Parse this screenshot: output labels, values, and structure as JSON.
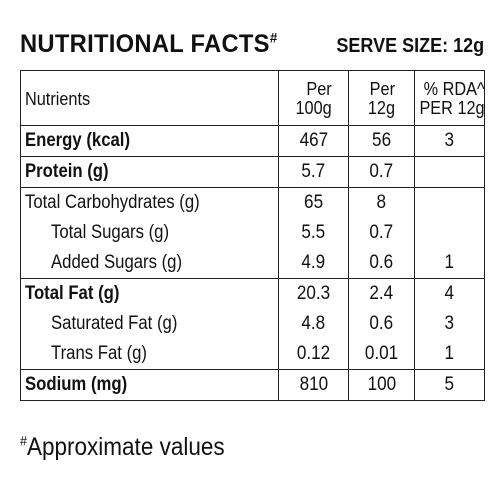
{
  "header": {
    "title": "NUTRITIONAL FACTS",
    "title_marker": "#",
    "serve_size": "SERVE SIZE: 12g"
  },
  "table": {
    "columns": {
      "nutrients": "Nutrients",
      "per100_line1": "Per",
      "per100_line2": "100g",
      "per12_line1": "Per",
      "per12_line2": "12g",
      "rda_line1": "% RDA^",
      "rda_line2": "PER 12g"
    },
    "rows": [
      {
        "name": "Energy (kcal)",
        "per100": "467",
        "per12": "56",
        "rda": "3"
      },
      {
        "name": "Protein (g)",
        "per100": "5.7",
        "per12": "0.7",
        "rda": ""
      },
      {
        "name": "Total Carbohydrates (g)",
        "per100": "65",
        "per12": "8",
        "rda": ""
      },
      {
        "name": "Total Sugars (g)",
        "per100": "5.5",
        "per12": "0.7",
        "rda": ""
      },
      {
        "name": "Added Sugars (g)",
        "per100": "4.9",
        "per12": "0.6",
        "rda": "1"
      },
      {
        "name": "Total Fat (g)",
        "per100": "20.3",
        "per12": "2.4",
        "rda": "4"
      },
      {
        "name": "Saturated Fat (g)",
        "per100": "4.8",
        "per12": "0.6",
        "rda": "3"
      },
      {
        "name": "Trans Fat (g)",
        "per100": "0.12",
        "per12": "0.01",
        "rda": "1"
      },
      {
        "name": "Sodium (mg)",
        "per100": "810",
        "per12": "100",
        "rda": "5"
      }
    ]
  },
  "footnote": {
    "marker": "#",
    "text": "Approximate values"
  }
}
